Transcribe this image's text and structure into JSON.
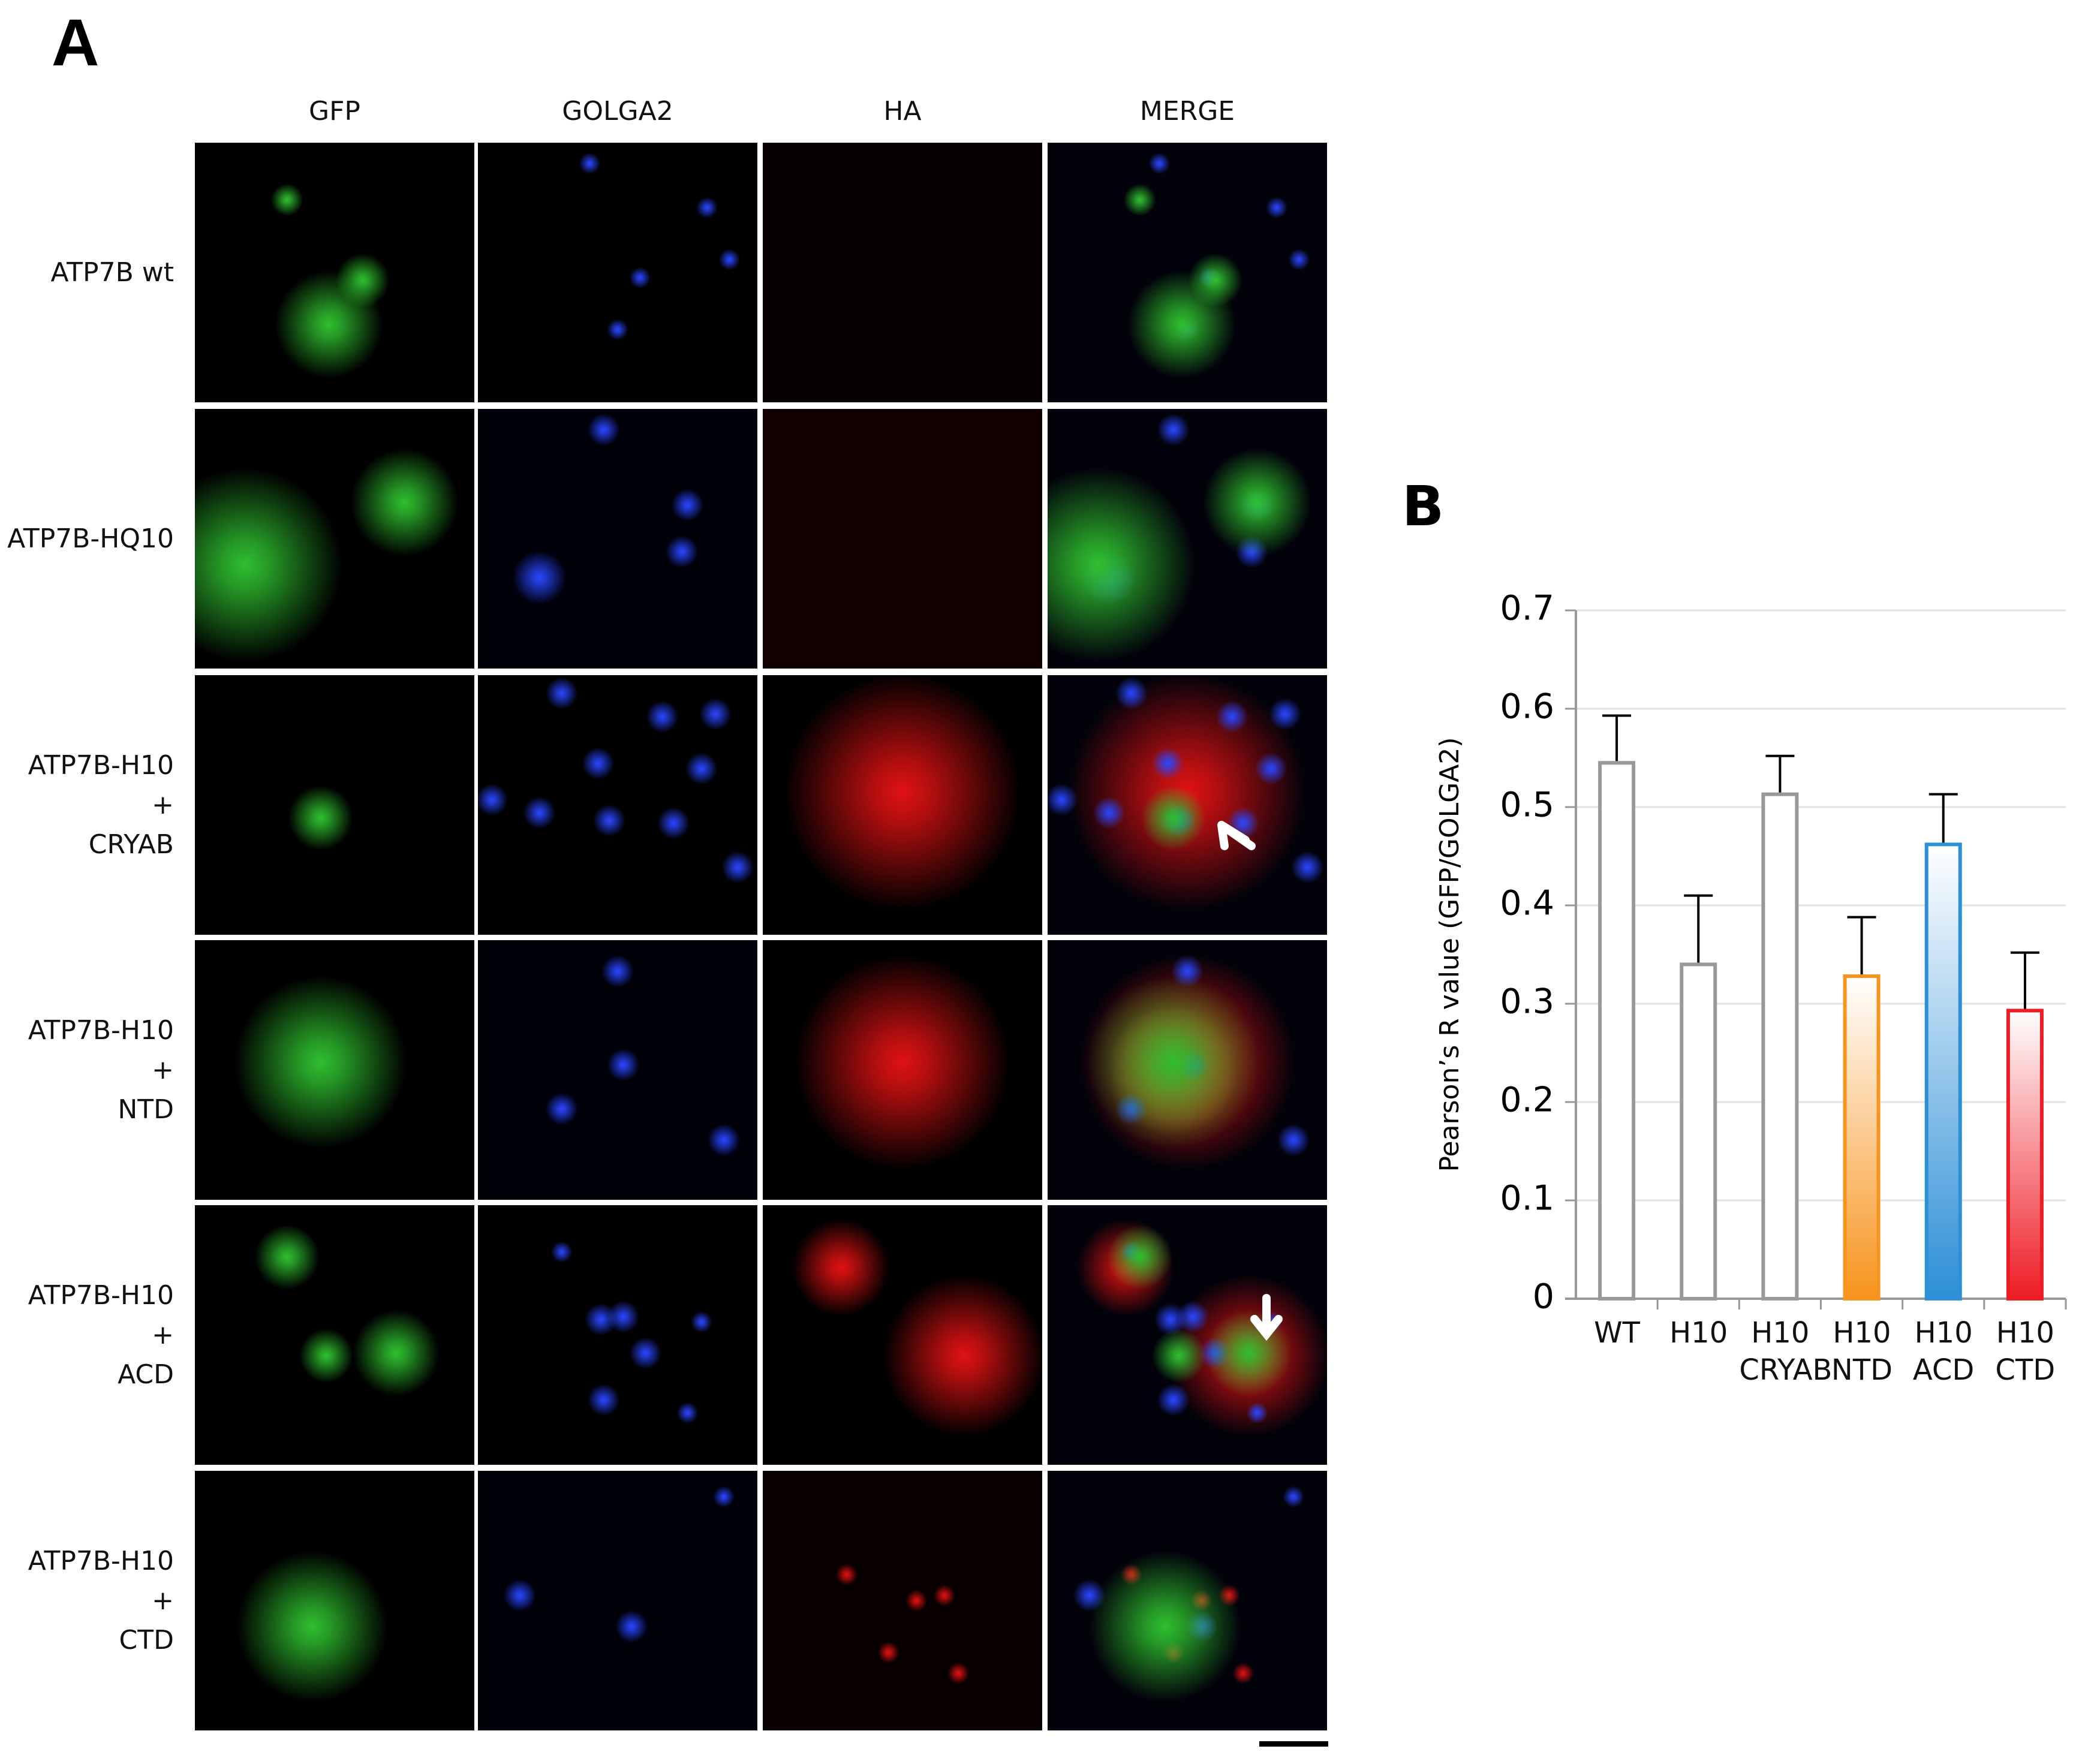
{
  "panel_a": {
    "label": "A",
    "columns": [
      "GFP",
      "GOLGA2",
      "HA",
      "MERGE"
    ],
    "rows": [
      "ATP7B wt",
      "ATP7B-HQ10",
      "ATP7B-H10\n+\nCRYAB",
      "ATP7B-H10\n+\nNTD",
      "ATP7B-H10\n+\nACD",
      "ATP7B-H10\n+\nCTD"
    ]
  },
  "chart_data": {
    "type": "bar",
    "panel_label": "B",
    "ylabel": "Pearson’s R value (GFP/GOLGA2)",
    "categories": [
      "WT",
      "H10",
      "H10\nCRYAB",
      "H10\nNTD",
      "H10\nACD",
      "H10\nCTD"
    ],
    "values": [
      0.545,
      0.34,
      0.513,
      0.328,
      0.462,
      0.293
    ],
    "errors": [
      0.048,
      0.07,
      0.039,
      0.06,
      0.051,
      0.059
    ],
    "edge_colors": [
      "#999999",
      "#999999",
      "#999999",
      "#f7941d",
      "#2d8fd6",
      "#ee1c25"
    ],
    "fill_colors": [
      "#ffffff",
      "#ffffff",
      "#ffffff",
      "#f7941d",
      "#2d8fd6",
      "#ee1c25"
    ],
    "ylim": [
      0,
      0.7
    ],
    "yticks": [
      0,
      0.1,
      0.2,
      0.3,
      0.4,
      0.5,
      0.6,
      0.7
    ],
    "grid": true
  }
}
